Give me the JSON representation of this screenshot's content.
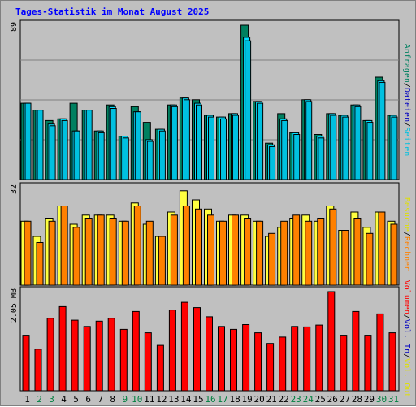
{
  "title": "Tages-Statistik im Monat August 2025",
  "colors": {
    "panel_bg": "#c0c0c0",
    "plot_bg": "#c0c0c0",
    "grid": "#808080",
    "anfragen": "#008060",
    "dateien": "#00e0ff",
    "seiten": "#00c0e0",
    "besuche": "#ffff40",
    "rechner": "#ff8000",
    "vol_in": "#ff8000",
    "vol_out": "#ffff00",
    "volumen": "#ff0000",
    "weekday": "#000000",
    "weekend": "#008040"
  },
  "legend": {
    "top": [
      {
        "label": "Anfragen",
        "color": "#008060"
      },
      {
        "label": "/",
        "color": "#000000"
      },
      {
        "label": "Dateien",
        "color": "#0000c0"
      },
      {
        "label": "/",
        "color": "#000000"
      },
      {
        "label": "Seiten",
        "color": "#00c0e0"
      }
    ],
    "mid": [
      {
        "label": "Besuche",
        "color": "#e0e000"
      },
      {
        "label": "/",
        "color": "#000000"
      },
      {
        "label": "Rechner",
        "color": "#ff8000"
      }
    ],
    "bot": [
      {
        "label": "Volumen",
        "color": "#ff0000"
      },
      {
        "label": "/",
        "color": "#000000"
      },
      {
        "label": "Vol. In",
        "color": "#0000c0"
      },
      {
        "label": "/",
        "color": "#000000"
      },
      {
        "label": "Vol. Out",
        "color": "#e0e000"
      }
    ]
  },
  "chart_data": {
    "type": "bar",
    "title": "Tages-Statistik im Monat August 2025",
    "x_labels": [
      "1",
      "2",
      "3",
      "4",
      "5",
      "6",
      "7",
      "8",
      "9",
      "10",
      "11",
      "12",
      "13",
      "14",
      "15",
      "16",
      "17",
      "18",
      "19",
      "20",
      "21",
      "22",
      "23",
      "24",
      "25",
      "26",
      "27",
      "28",
      "29",
      "30",
      "31"
    ],
    "weekend_days": [
      2,
      3,
      9,
      10,
      16,
      17,
      23,
      24,
      30,
      31
    ],
    "panels": [
      {
        "name": "anfragen_dateien_seiten",
        "ymax_label": "89",
        "ymax": 89,
        "grid": true,
        "series": [
          {
            "name": "Anfragen",
            "values": [
              44,
              40,
              34,
              35,
              44,
              40,
              28,
              43,
              25,
              42,
              33,
              29,
              43,
              47,
              46,
              37,
              36,
              38,
              89,
              45,
              21,
              38,
              27,
              46,
              26,
              38,
              37,
              43,
              34,
              59,
              37
            ]
          },
          {
            "name": "Dateien",
            "values": [
              44,
              40,
              32,
              35,
              28,
              40,
              28,
              42,
              25,
              39,
              23,
              29,
              43,
              47,
              44,
              37,
              36,
              38,
              82,
              45,
              20,
              35,
              27,
              46,
              25,
              38,
              37,
              43,
              34,
              57,
              37
            ]
          },
          {
            "name": "Seiten",
            "values": [
              44,
              40,
              31,
              34,
              28,
              40,
              27,
              41,
              24,
              39,
              22,
              28,
              42,
              46,
              43,
              36,
              35,
              37,
              80,
              44,
              19,
              34,
              26,
              45,
              24,
              37,
              36,
              42,
              33,
              56,
              36
            ]
          }
        ]
      },
      {
        "name": "besuche_rechner",
        "ymax_label": "32",
        "ymax": 32,
        "grid": false,
        "series": [
          {
            "name": "Besuche",
            "values": [
              21,
              16,
              22,
              26,
              20,
              23,
              23,
              23,
              21,
              27,
              20,
              16,
              24,
              31,
              28,
              25,
              21,
              23,
              23,
              21,
              16,
              19,
              22,
              23,
              21,
              26,
              18,
              24,
              19,
              24,
              21
            ]
          },
          {
            "name": "Rechner",
            "values": [
              21,
              14,
              21,
              26,
              19,
              22,
              23,
              22,
              21,
              26,
              21,
              16,
              23,
              26,
              25,
              23,
              21,
              23,
              22,
              21,
              17,
              21,
              23,
              21,
              22,
              25,
              18,
              22,
              17,
              24,
              20
            ]
          }
        ]
      },
      {
        "name": "volumen",
        "ymax_label": "2.05 MB",
        "ymax": 2.05,
        "grid": false,
        "series": [
          {
            "name": "Volumen",
            "values": [
              1.15,
              0.86,
              1.5,
              1.74,
              1.46,
              1.33,
              1.44,
              1.5,
              1.27,
              1.64,
              1.2,
              0.94,
              1.67,
              1.83,
              1.72,
              1.53,
              1.33,
              1.27,
              1.37,
              1.2,
              0.98,
              1.11,
              1.33,
              1.32,
              1.36,
              2.05,
              1.15,
              1.64,
              1.15,
              1.59,
              1.2
            ]
          }
        ]
      }
    ]
  }
}
